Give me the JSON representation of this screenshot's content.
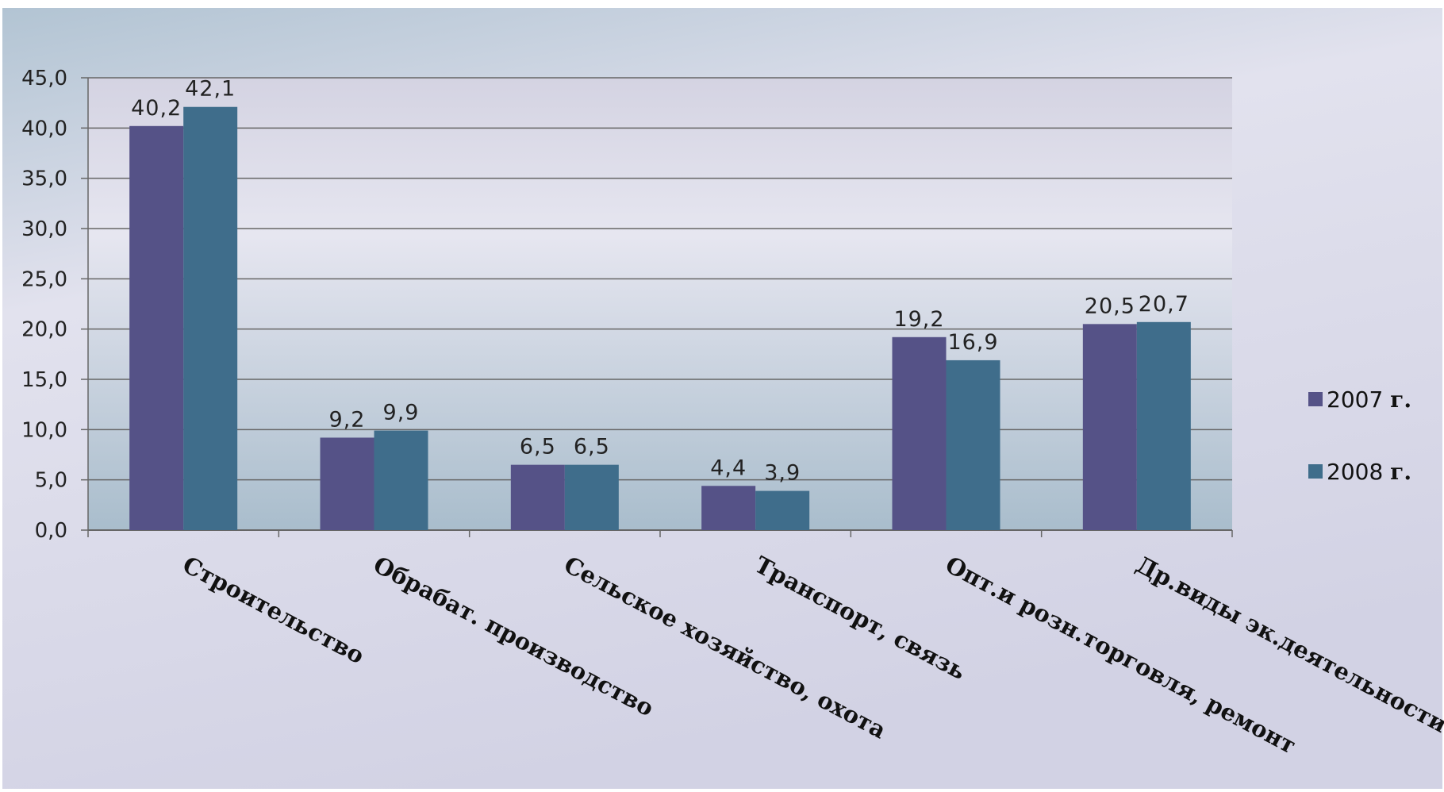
{
  "chart_data": {
    "type": "bar",
    "categories": [
      "Строительство",
      "Обрабат. производство",
      "Сельское хозяйство, охота",
      "Транспорт, связь",
      "Опт.и розн.торговля, ремонт",
      "Др.виды эк.деятельности"
    ],
    "series": [
      {
        "name": "2007",
        "legend_suffix": "г.",
        "color": "#555287",
        "values": [
          40.2,
          9.2,
          6.5,
          4.4,
          19.2,
          20.5
        ],
        "value_labels": [
          "40,2",
          "9,2",
          "6,5",
          "4,4",
          "19,2",
          "20,5"
        ]
      },
      {
        "name": "2008",
        "legend_suffix": "г.",
        "color": "#3f6d8b",
        "values": [
          42.1,
          9.9,
          6.5,
          3.9,
          16.9,
          20.7
        ],
        "value_labels": [
          "42,1",
          "9,9",
          "6,5",
          "3,9",
          "16,9",
          "20,7"
        ]
      }
    ],
    "ylim": [
      0,
      45
    ],
    "yticks": [
      0,
      5,
      10,
      15,
      20,
      25,
      30,
      35,
      40,
      45
    ],
    "ytick_labels": [
      "0,0",
      "5,0",
      "10,0",
      "15,0",
      "20,0",
      "25,0",
      "30,0",
      "35,0",
      "40,0",
      "45,0"
    ],
    "grid": true,
    "legend_position": "right",
    "title": "",
    "xlabel": "",
    "ylabel": ""
  },
  "colors": {
    "background_top": "#b2c4d3",
    "background_mid": "#e2e2ee",
    "background_bottom": "#d2d2e4",
    "plot_top": "#d4d3e2",
    "plot_mid": "#e6e6f0",
    "plot_bottom": "#a9bdcc",
    "gridline": "#666666"
  }
}
